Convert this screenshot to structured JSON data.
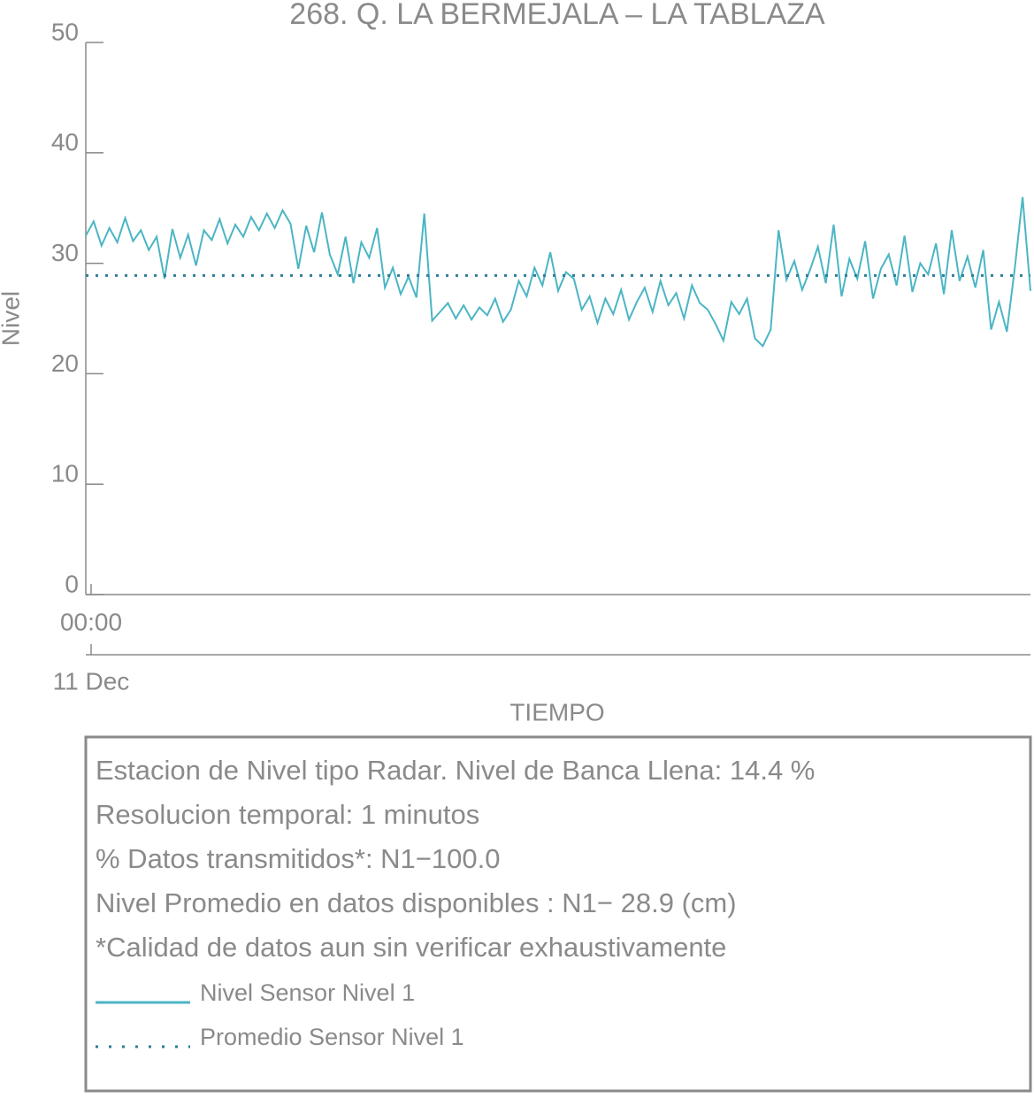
{
  "chart_data": {
    "type": "line",
    "title": "268. Q. LA BERMEJALA – LA TABLAZA",
    "y_label": "Nivel",
    "x_label": "TIEMPO",
    "x": [
      0,
      12,
      24,
      36,
      48,
      60,
      72,
      84,
      96,
      108,
      120,
      132,
      144,
      156,
      168,
      180,
      192,
      204,
      216,
      228,
      240,
      252,
      264,
      276,
      288,
      300,
      312,
      324,
      336,
      348,
      360,
      372,
      384,
      396,
      408,
      420,
      432,
      444,
      456,
      468,
      480,
      492,
      504,
      516,
      528,
      540,
      552,
      564,
      576,
      588,
      600,
      612,
      624,
      636,
      648,
      660,
      672,
      684,
      696,
      708,
      720,
      732,
      744,
      756,
      768,
      780,
      792,
      804,
      816,
      828,
      840,
      852,
      864,
      876,
      888,
      900,
      912,
      924,
      936,
      948,
      960,
      972,
      984,
      996,
      1008,
      1020,
      1032,
      1044,
      1056,
      1068,
      1080,
      1092,
      1104,
      1116,
      1128,
      1140,
      1152,
      1164,
      1176,
      1188,
      1200,
      1212,
      1224,
      1236,
      1248,
      1260,
      1272,
      1284,
      1296,
      1308,
      1320,
      1332,
      1344,
      1356,
      1368,
      1380,
      1392,
      1404,
      1416,
      1428,
      1440
    ],
    "xlim": [
      0,
      1440
    ],
    "xticks": [
      {
        "value": 0,
        "label": "00:00"
      }
    ],
    "x_date_ticks": [
      {
        "value": 0,
        "label": "11 Dec"
      }
    ],
    "ylim": [
      0,
      50
    ],
    "yticks": [
      0,
      10,
      20,
      30,
      40,
      50
    ],
    "series": [
      {
        "name": "Nivel Sensor Nivel 1",
        "color": "#4bb5c4",
        "values": [
          32.5,
          33.8,
          31.6,
          33.2,
          31.9,
          34.1,
          32.0,
          33.0,
          31.2,
          32.4,
          28.6,
          33.1,
          30.5,
          32.6,
          29.8,
          33.0,
          32.1,
          34.0,
          31.8,
          33.5,
          32.4,
          34.2,
          33.0,
          34.5,
          33.2,
          34.8,
          33.6,
          29.5,
          33.4,
          31.0,
          34.6,
          30.8,
          29.0,
          32.4,
          28.2,
          31.9,
          30.5,
          33.2,
          27.8,
          29.6,
          27.2,
          28.8,
          26.9,
          34.5,
          24.8,
          25.6,
          26.4,
          25.0,
          26.2,
          24.9,
          26.0,
          25.3,
          26.8,
          24.7,
          25.8,
          28.4,
          27.0,
          29.6,
          28.0,
          31.0,
          27.5,
          29.2,
          28.6,
          25.8,
          27.0,
          24.6,
          26.8,
          25.4,
          27.6,
          24.9,
          26.5,
          27.8,
          25.6,
          28.4,
          26.2,
          27.3,
          25.0,
          28.0,
          26.4,
          25.8,
          24.5,
          23.0,
          26.5,
          25.4,
          26.8,
          23.2,
          22.5,
          24.0,
          33.0,
          28.5,
          30.2,
          27.6,
          29.4,
          31.5,
          28.2,
          33.5,
          27.0,
          30.4,
          28.6,
          32.0,
          26.8,
          29.5,
          30.8,
          28.0,
          32.5,
          27.4,
          30.0,
          29.0,
          31.8,
          27.2,
          33.0,
          28.4,
          30.6,
          27.8,
          31.2,
          24.0,
          26.5,
          23.8,
          29.5,
          36.0,
          27.5
        ]
      }
    ],
    "reference_lines": [
      {
        "name": "Promedio Sensor Nivel 1",
        "color": "#2e7d98",
        "value": 28.9,
        "style": "dotted"
      }
    ],
    "notes": [
      "Estacion de Nivel tipo Radar. Nivel de Banca Llena: 14.4 %",
      "Resolucion temporal: 1 minutos",
      "% Datos transmitidos*: N1−100.0",
      "Nivel Promedio en datos disponibles : N1− 28.9 (cm)",
      "*Calidad de datos aun sin verificar exhaustivamente"
    ]
  }
}
